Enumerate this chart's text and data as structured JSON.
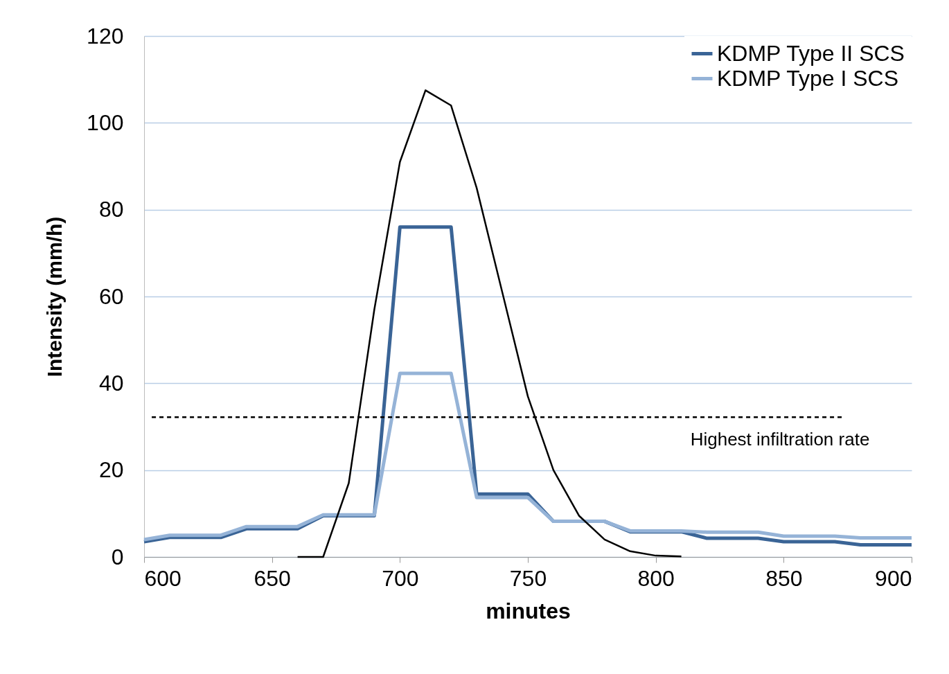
{
  "chart_data": {
    "type": "line",
    "xlabel": "minutes",
    "ylabel": "Intensity (mm/h)",
    "x": [
      600,
      610,
      620,
      630,
      640,
      650,
      660,
      670,
      680,
      690,
      700,
      710,
      720,
      730,
      740,
      750,
      760,
      770,
      780,
      790,
      800,
      810,
      820,
      830,
      840,
      850,
      860,
      870,
      880,
      890,
      900
    ],
    "series": [
      {
        "name": "KDMP Type II SCS",
        "color": "#3a6496",
        "values": [
          3.5,
          4.5,
          4.5,
          4.5,
          6.5,
          6.5,
          6.5,
          9.5,
          9.5,
          9.5,
          76,
          76,
          76,
          14.5,
          14.5,
          14.5,
          8.2,
          8.2,
          8.2,
          5.8,
          5.8,
          5.8,
          4.3,
          4.3,
          4.3,
          3.5,
          3.5,
          3.5,
          2.8,
          2.8,
          2.8
        ]
      },
      {
        "name": "KDMP Type I SCS",
        "color": "#95b3d7",
        "values": [
          4,
          5,
          5,
          5,
          7,
          7,
          7,
          9.7,
          9.7,
          9.7,
          42.3,
          42.3,
          42.3,
          13.7,
          13.7,
          13.7,
          8.2,
          8.2,
          8.2,
          6,
          6,
          6,
          5.7,
          5.7,
          5.7,
          4.8,
          4.8,
          4.8,
          4.4,
          4.4,
          4.4
        ]
      },
      {
        "color": "#000000",
        "x": [
          660,
          670,
          680,
          690,
          700,
          710,
          720,
          730,
          740,
          750,
          760,
          770,
          780,
          790,
          800,
          810
        ],
        "values": [
          0,
          0,
          17,
          57,
          91,
          107.5,
          104,
          85,
          61,
          37,
          20,
          9.5,
          4,
          1.3,
          0.3,
          0.1
        ]
      },
      {
        "color": "#000000",
        "line_style": "dashed",
        "x": [
          603,
          873
        ],
        "values": [
          32.2,
          32.2
        ]
      }
    ],
    "annotations": [
      "Highest infiltration rate"
    ],
    "xlim": [
      600,
      900
    ],
    "xticks": [
      600,
      650,
      700,
      750,
      800,
      850,
      900
    ],
    "ylim": [
      0,
      120
    ],
    "yticks": [
      0,
      20,
      40,
      60,
      80,
      100,
      120
    ],
    "grid": "y",
    "legend": "top right",
    "marker": "none",
    "line_style": "solid"
  }
}
